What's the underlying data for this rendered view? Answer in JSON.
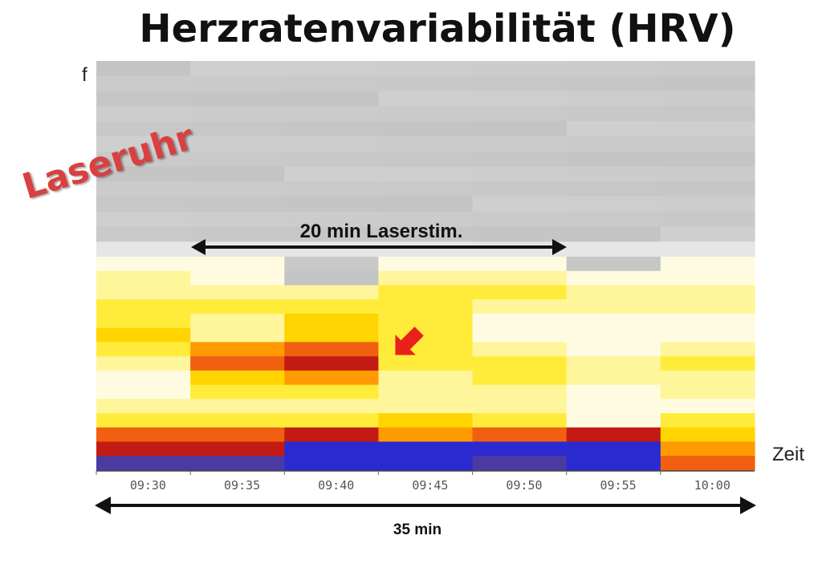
{
  "title": "Herzratenvariabilität (HRV)",
  "y_axis_label": "f",
  "x_axis_label": "Zeit",
  "brand_label": "Laseruhr",
  "annotations": {
    "stim_label": "20 min Laserstim.",
    "total_label": "35 min"
  },
  "colors": {
    "arrow": "#e8211b",
    "brand": "#d9403f"
  },
  "chart_data": {
    "type": "heatmap",
    "title": "Herzratenvariabilität (HRV)",
    "xlabel": "Zeit",
    "ylabel": "f",
    "x_ticks": [
      "09:30",
      "09:35",
      "09:40",
      "09:45",
      "09:50",
      "09:55",
      "10:00"
    ],
    "x_columns": [
      "09:30",
      "09:35",
      "09:40",
      "09:45",
      "09:50",
      "09:55",
      "10:00"
    ],
    "y_bins": 28,
    "y_direction": "bins listed from highest frequency (top) to lowest (bottom)",
    "intensity_scale": "0 = grey (background), then low→high: white, yellow, orange, red, dark red; 8–9 = blue tones (bottom band)",
    "columns": [
      [
        0,
        0,
        0,
        0,
        0,
        0,
        0,
        0,
        0,
        0,
        0,
        0,
        0,
        1,
        2,
        2,
        3,
        3,
        4,
        3,
        2,
        1,
        1,
        2,
        3,
        6,
        7,
        9
      ],
      [
        0,
        0,
        0,
        0,
        0,
        0,
        0,
        0,
        0,
        0,
        0,
        0,
        0,
        1,
        1,
        2,
        3,
        2,
        2,
        5,
        6,
        4,
        3,
        2,
        3,
        6,
        7,
        9
      ],
      [
        0,
        0,
        0,
        0,
        0,
        0,
        0,
        0,
        0,
        0,
        0,
        0,
        0,
        0,
        0,
        2,
        3,
        4,
        4,
        6,
        7,
        5,
        3,
        2,
        3,
        7,
        8,
        8
      ],
      [
        0,
        0,
        0,
        0,
        0,
        0,
        0,
        0,
        0,
        0,
        0,
        0,
        0,
        1,
        2,
        3,
        3,
        3,
        3,
        3,
        3,
        2,
        2,
        2,
        4,
        5,
        8,
        8
      ],
      [
        0,
        0,
        0,
        0,
        0,
        0,
        0,
        0,
        0,
        0,
        0,
        0,
        0,
        1,
        2,
        3,
        2,
        1,
        1,
        2,
        3,
        3,
        2,
        2,
        3,
        6,
        8,
        9
      ],
      [
        0,
        0,
        0,
        0,
        0,
        0,
        0,
        0,
        0,
        0,
        0,
        0,
        0,
        0,
        1,
        2,
        2,
        1,
        1,
        1,
        2,
        2,
        1,
        1,
        1,
        7,
        8,
        8
      ],
      [
        0,
        0,
        0,
        0,
        0,
        0,
        0,
        0,
        0,
        0,
        0,
        0,
        0,
        1,
        1,
        2,
        2,
        1,
        1,
        2,
        3,
        2,
        2,
        1,
        3,
        4,
        5,
        6
      ]
    ],
    "stimulation_period": {
      "label": "20 min Laserstim.",
      "from": "09:35",
      "to": "09:55"
    },
    "total_span": {
      "label": "35 min",
      "from": "09:30",
      "to": "10:05"
    },
    "marker": {
      "type": "arrow",
      "at": "09:45"
    }
  }
}
